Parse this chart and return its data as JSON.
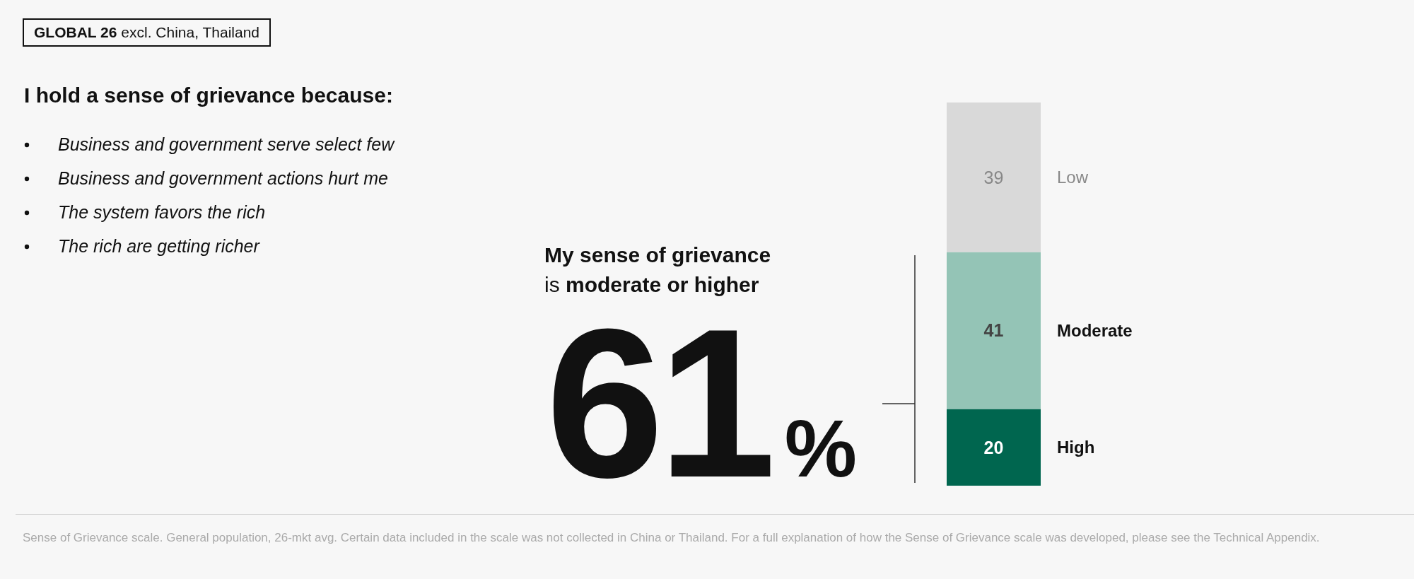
{
  "chart_data": {
    "type": "bar",
    "stacked": true,
    "subtitle": "GLOBAL 26 excl. China, Thailand",
    "title": "I hold a sense of grievance because:",
    "categories": [
      null
    ],
    "series": [
      {
        "name": "High",
        "color": "#00664f",
        "values": [
          20
        ]
      },
      {
        "name": "Moderate",
        "color": "#94c4b6",
        "values": [
          41
        ]
      },
      {
        "name": "Low",
        "color": "#d9d9d9",
        "values": [
          39
        ]
      }
    ],
    "data_labels": true,
    "legend": false,
    "annotations": [
      "My sense of grievance is moderate or higher",
      "61%",
      "Business and government serve select few",
      "Business and government actions hurt me",
      "The system favors the rich",
      "The rich are getting richer",
      "Sense of Grievance scale. General population, 26-mkt avg. Certain data included in the scale was not collected in China or Thailand. For a full explanation of how the Sense of Grievance scale was developed, please see the Technical Appendix."
    ]
  }
}
